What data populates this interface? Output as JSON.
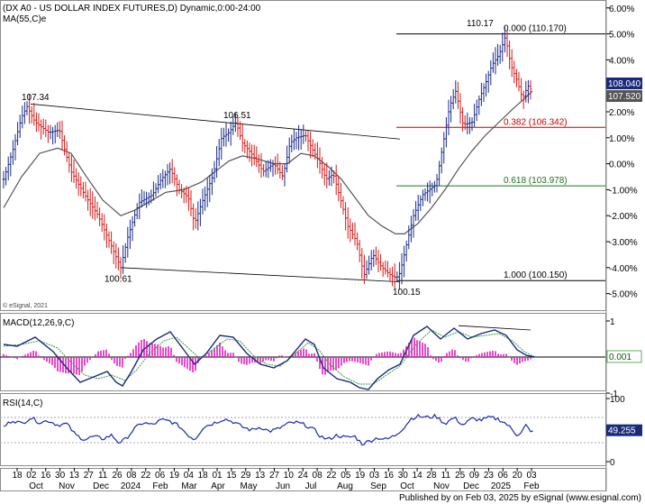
{
  "chart_data": [
    {
      "type": "candlestick",
      "title": "(DX A0 - US DOLLAR INDEX FUTURES,D) Dynamic,0:00-24:00",
      "ma_label": "MA(55,C)e",
      "copyright": "© eSignal, 2021",
      "y_axis": {
        "unit": "% change",
        "ticks": [
          "6.00%",
          "5.00%",
          "4.00%",
          "3.00%",
          "2.00%",
          "1.00%",
          "0.00%",
          "-1.00%",
          "-2.00%",
          "-3.00%",
          "-4.00%",
          "-5.00%"
        ],
        "ylim": [
          -5.5,
          6.2
        ]
      },
      "price_badges": [
        {
          "text": "108.040",
          "fill": "#1a2a7a",
          "color": "#ffffff"
        },
        {
          "text": "107.520",
          "fill": "#555555",
          "color": "#ffffff"
        }
      ],
      "fib_levels": [
        {
          "text": "0.000 (110.170)",
          "color": "#000000",
          "value": 5.0
        },
        {
          "text": "0.382 (106.342)",
          "color": "#c00000",
          "value": 1.4
        },
        {
          "text": "0.618 (103.978)",
          "color": "#207020",
          "value": -0.85
        },
        {
          "text": "1.000 (100.150)",
          "color": "#000000",
          "value": -4.5
        }
      ],
      "annotations": [
        "107.34",
        "106.51",
        "100.61",
        "100.15",
        "110.17"
      ],
      "close_path": [
        [
          0,
          -0.6
        ],
        [
          10,
          0.5
        ],
        [
          20,
          1.8
        ],
        [
          26,
          2.2
        ],
        [
          35,
          1.6
        ],
        [
          50,
          1.2
        ],
        [
          62,
          1.3
        ],
        [
          68,
          0.5
        ],
        [
          75,
          -0.3
        ],
        [
          90,
          -1.2
        ],
        [
          105,
          -2.0
        ],
        [
          115,
          -2.8
        ],
        [
          125,
          -3.6
        ],
        [
          130,
          -4.0
        ],
        [
          138,
          -2.8
        ],
        [
          150,
          -1.5
        ],
        [
          165,
          -1.2
        ],
        [
          175,
          -0.6
        ],
        [
          185,
          -0.2
        ],
        [
          195,
          -1.0
        ],
        [
          205,
          -1.3
        ],
        [
          212,
          -2.3
        ],
        [
          220,
          -1.5
        ],
        [
          232,
          -0.5
        ],
        [
          242,
          1.0
        ],
        [
          250,
          1.2
        ],
        [
          258,
          1.6
        ],
        [
          265,
          0.8
        ],
        [
          275,
          0.4
        ],
        [
          288,
          -0.3
        ],
        [
          300,
          0.0
        ],
        [
          310,
          -0.5
        ],
        [
          318,
          0.8
        ],
        [
          325,
          1.0
        ],
        [
          335,
          1.1
        ],
        [
          342,
          0.6
        ],
        [
          350,
          0.1
        ],
        [
          358,
          -0.6
        ],
        [
          366,
          -0.4
        ],
        [
          375,
          -1.5
        ],
        [
          382,
          -2.4
        ],
        [
          392,
          -3.0
        ],
        [
          400,
          -4.3
        ],
        [
          410,
          -3.5
        ],
        [
          420,
          -4.0
        ],
        [
          430,
          -4.3
        ],
        [
          436,
          -4.4
        ],
        [
          440,
          -4.2
        ],
        [
          448,
          -3.0
        ],
        [
          455,
          -2.0
        ],
        [
          465,
          -1.2
        ],
        [
          480,
          -0.8
        ],
        [
          488,
          0.8
        ],
        [
          495,
          2.2
        ],
        [
          502,
          2.8
        ],
        [
          510,
          1.5
        ],
        [
          520,
          1.6
        ],
        [
          528,
          2.5
        ],
        [
          535,
          3.1
        ],
        [
          542,
          3.8
        ],
        [
          550,
          4.2
        ],
        [
          557,
          4.9
        ],
        [
          563,
          3.8
        ],
        [
          570,
          3.2
        ],
        [
          576,
          2.5
        ],
        [
          582,
          3.0
        ],
        [
          587,
          2.8
        ]
      ],
      "ma_path": [
        [
          0,
          -1.7
        ],
        [
          20,
          -0.5
        ],
        [
          40,
          0.4
        ],
        [
          60,
          0.6
        ],
        [
          75,
          0.4
        ],
        [
          90,
          -0.4
        ],
        [
          110,
          -1.4
        ],
        [
          130,
          -2.0
        ],
        [
          145,
          -1.8
        ],
        [
          160,
          -1.5
        ],
        [
          180,
          -1.1
        ],
        [
          200,
          -1.0
        ],
        [
          220,
          -0.7
        ],
        [
          235,
          -0.3
        ],
        [
          250,
          0.1
        ],
        [
          265,
          0.3
        ],
        [
          280,
          0.2
        ],
        [
          300,
          0.0
        ],
        [
          315,
          0.0
        ],
        [
          330,
          0.4
        ],
        [
          345,
          0.3
        ],
        [
          360,
          -0.1
        ],
        [
          375,
          -0.6
        ],
        [
          390,
          -1.3
        ],
        [
          405,
          -2.0
        ],
        [
          420,
          -2.4
        ],
        [
          435,
          -2.7
        ],
        [
          445,
          -2.7
        ],
        [
          460,
          -2.3
        ],
        [
          475,
          -1.7
        ],
        [
          490,
          -1.0
        ],
        [
          505,
          -0.2
        ],
        [
          520,
          0.5
        ],
        [
          535,
          1.1
        ],
        [
          550,
          1.6
        ],
        [
          565,
          2.1
        ],
        [
          578,
          2.5
        ],
        [
          587,
          2.8
        ]
      ],
      "channel_upper": [
        [
          30,
          2.3
        ],
        [
          440,
          0.95
        ]
      ],
      "channel_lower": [
        [
          130,
          -4.0
        ],
        [
          440,
          -4.55
        ]
      ]
    },
    {
      "type": "line",
      "title": "MACD(12,26,9,C)",
      "y_ticks": [
        "1",
        "-1"
      ],
      "badge": {
        "text": "0.001",
        "fill": "#ffffff",
        "color": "#0a5a0a",
        "border": "#60b060"
      },
      "macd_path": [
        [
          0,
          0.35
        ],
        [
          15,
          0.3
        ],
        [
          35,
          0.55
        ],
        [
          55,
          0.15
        ],
        [
          70,
          -0.3
        ],
        [
          85,
          -0.7
        ],
        [
          100,
          -0.55
        ],
        [
          115,
          -0.4
        ],
        [
          125,
          -0.7
        ],
        [
          132,
          -0.8
        ],
        [
          142,
          -0.4
        ],
        [
          155,
          0.2
        ],
        [
          170,
          0.5
        ],
        [
          185,
          0.7
        ],
        [
          200,
          0.2
        ],
        [
          212,
          -0.2
        ],
        [
          225,
          0.1
        ],
        [
          240,
          0.6
        ],
        [
          255,
          0.55
        ],
        [
          270,
          0.1
        ],
        [
          285,
          -0.2
        ],
        [
          300,
          -0.3
        ],
        [
          315,
          -0.1
        ],
        [
          335,
          0.5
        ],
        [
          345,
          0.35
        ],
        [
          355,
          -0.3
        ],
        [
          370,
          -0.6
        ],
        [
          385,
          -0.7
        ],
        [
          395,
          -0.85
        ],
        [
          405,
          -0.9
        ],
        [
          415,
          -0.6
        ],
        [
          428,
          -0.35
        ],
        [
          440,
          -0.2
        ],
        [
          455,
          0.6
        ],
        [
          470,
          0.85
        ],
        [
          485,
          0.5
        ],
        [
          500,
          0.8
        ],
        [
          515,
          0.5
        ],
        [
          530,
          0.65
        ],
        [
          545,
          0.75
        ],
        [
          558,
          0.6
        ],
        [
          570,
          0.2
        ],
        [
          580,
          0.05
        ],
        [
          590,
          0.0
        ]
      ],
      "signal_path": [
        [
          0,
          0.3
        ],
        [
          20,
          0.35
        ],
        [
          40,
          0.45
        ],
        [
          60,
          0.25
        ],
        [
          75,
          -0.15
        ],
        [
          90,
          -0.5
        ],
        [
          105,
          -0.6
        ],
        [
          120,
          -0.5
        ],
        [
          135,
          -0.65
        ],
        [
          148,
          -0.35
        ],
        [
          162,
          0.1
        ],
        [
          178,
          0.45
        ],
        [
          192,
          0.55
        ],
        [
          205,
          0.25
        ],
        [
          218,
          -0.05
        ],
        [
          232,
          0.2
        ],
        [
          248,
          0.5
        ],
        [
          262,
          0.45
        ],
        [
          277,
          0.05
        ],
        [
          292,
          -0.2
        ],
        [
          307,
          -0.25
        ],
        [
          322,
          0.05
        ],
        [
          338,
          0.4
        ],
        [
          350,
          0.2
        ],
        [
          362,
          -0.2
        ],
        [
          378,
          -0.55
        ],
        [
          395,
          -0.75
        ],
        [
          410,
          -0.75
        ],
        [
          425,
          -0.5
        ],
        [
          440,
          -0.25
        ],
        [
          458,
          0.35
        ],
        [
          475,
          0.75
        ],
        [
          490,
          0.55
        ],
        [
          505,
          0.7
        ],
        [
          520,
          0.55
        ],
        [
          535,
          0.6
        ],
        [
          550,
          0.65
        ],
        [
          565,
          0.45
        ],
        [
          578,
          0.15
        ],
        [
          590,
          0.0
        ]
      ],
      "trendline": [
        [
          505,
          0.87
        ],
        [
          585,
          0.75
        ]
      ]
    },
    {
      "type": "line",
      "title": "RSI(14,C)",
      "y_ticks": [
        "100",
        "0"
      ],
      "badge": {
        "text": "49.255",
        "fill": "#1a2a7a",
        "color": "#ffffff"
      },
      "rsi_path": [
        [
          0,
          55
        ],
        [
          10,
          66
        ],
        [
          20,
          60
        ],
        [
          30,
          70
        ],
        [
          40,
          62
        ],
        [
          50,
          65
        ],
        [
          60,
          58
        ],
        [
          70,
          60
        ],
        [
          80,
          42
        ],
        [
          90,
          35
        ],
        [
          100,
          40
        ],
        [
          110,
          36
        ],
        [
          120,
          42
        ],
        [
          128,
          30
        ],
        [
          135,
          35
        ],
        [
          145,
          52
        ],
        [
          155,
          62
        ],
        [
          165,
          58
        ],
        [
          175,
          66
        ],
        [
          185,
          64
        ],
        [
          195,
          56
        ],
        [
          205,
          42
        ],
        [
          212,
          35
        ],
        [
          222,
          55
        ],
        [
          235,
          62
        ],
        [
          245,
          68
        ],
        [
          255,
          63
        ],
        [
          265,
          55
        ],
        [
          275,
          50
        ],
        [
          285,
          55
        ],
        [
          295,
          48
        ],
        [
          305,
          52
        ],
        [
          315,
          60
        ],
        [
          325,
          62
        ],
        [
          335,
          58
        ],
        [
          345,
          50
        ],
        [
          352,
          40
        ],
        [
          360,
          35
        ],
        [
          370,
          42
        ],
        [
          380,
          38
        ],
        [
          390,
          40
        ],
        [
          398,
          28
        ],
        [
          405,
          32
        ],
        [
          415,
          38
        ],
        [
          425,
          35
        ],
        [
          435,
          42
        ],
        [
          445,
          55
        ],
        [
          452,
          68
        ],
        [
          460,
          72
        ],
        [
          470,
          70
        ],
        [
          480,
          72
        ],
        [
          490,
          60
        ],
        [
          500,
          70
        ],
        [
          510,
          58
        ],
        [
          520,
          68
        ],
        [
          530,
          66
        ],
        [
          540,
          70
        ],
        [
          550,
          67
        ],
        [
          558,
          60
        ],
        [
          565,
          50
        ],
        [
          570,
          42
        ],
        [
          575,
          48
        ],
        [
          580,
          58
        ],
        [
          585,
          46
        ],
        [
          590,
          49
        ]
      ]
    }
  ],
  "x_axis": {
    "days": [
      "18",
      "02",
      "16",
      "30",
      "13",
      "27",
      "11",
      "26",
      "08",
      "22",
      "06",
      "19",
      "04",
      "18",
      "01",
      "15",
      "29",
      "13",
      "27",
      "10",
      "24",
      "08",
      "22",
      "05",
      "19",
      "03",
      "16",
      "30",
      "14",
      "28",
      "11",
      "25",
      "09",
      "23",
      "06",
      "20",
      "03"
    ],
    "months": [
      {
        "label": "Oct",
        "x": 40
      },
      {
        "label": "Nov",
        "x": 74
      },
      {
        "label": "Dec",
        "x": 112
      },
      {
        "label": "2024",
        "x": 145
      },
      {
        "label": "Feb",
        "x": 178
      },
      {
        "label": "Mar",
        "x": 210
      },
      {
        "label": "Apr",
        "x": 242
      },
      {
        "label": "May",
        "x": 276
      },
      {
        "label": "Jun",
        "x": 314
      },
      {
        "label": "Jul",
        "x": 345
      },
      {
        "label": "Aug",
        "x": 383
      },
      {
        "label": "Sep",
        "x": 420
      },
      {
        "label": "Oct",
        "x": 452
      },
      {
        "label": "Nov",
        "x": 490
      },
      {
        "label": "Dec",
        "x": 523
      },
      {
        "label": "2025",
        "x": 556
      },
      {
        "label": "Feb",
        "x": 590
      }
    ]
  },
  "footer": "Published by on Feb 03, 2025 by eSignal (www.esignal.com)"
}
